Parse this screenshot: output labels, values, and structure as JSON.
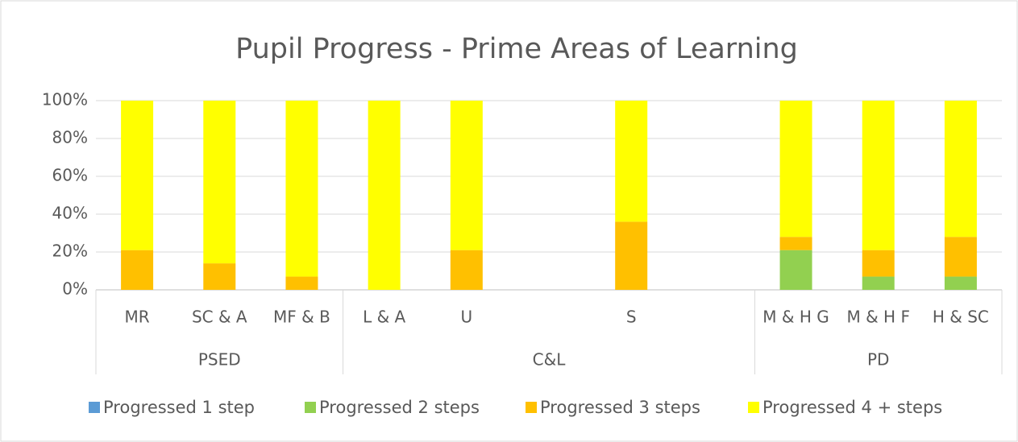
{
  "chart_data": {
    "type": "bar",
    "stacked": true,
    "title": "Pupil Progress - Prime Areas of Learning",
    "categories": [
      "MR",
      "SC & A",
      "MF & B",
      "L & A",
      "U",
      null,
      "S",
      null,
      "M & H G",
      "M & H F",
      "H & SC"
    ],
    "groups": [
      {
        "label": "PSED",
        "span": 3
      },
      {
        "label": "C&L",
        "span": 5
      },
      {
        "label": "PD",
        "span": 3
      }
    ],
    "series": [
      {
        "name": "Progressed 1 step",
        "color": "#5b9bd5",
        "values": [
          0,
          0,
          0,
          0,
          0,
          null,
          0,
          null,
          0,
          0,
          0
        ]
      },
      {
        "name": "Progressed 2 steps",
        "color": "#92d050",
        "values": [
          0,
          0,
          0,
          0,
          0,
          null,
          0,
          null,
          21,
          7,
          7
        ]
      },
      {
        "name": "Progressed 3 steps",
        "color": "#ffc000",
        "values": [
          21,
          14,
          7,
          0,
          21,
          null,
          36,
          null,
          7,
          14,
          21
        ]
      },
      {
        "name": "Progressed 4 + steps",
        "color": "#ffff00",
        "values": [
          79,
          86,
          93,
          100,
          79,
          null,
          64,
          null,
          72,
          79,
          72
        ]
      }
    ],
    "ylim": [
      0,
      100
    ],
    "yticks": [
      {
        "value": 0,
        "label": "0%"
      },
      {
        "value": 20,
        "label": "20%"
      },
      {
        "value": 40,
        "label": "40%"
      },
      {
        "value": 60,
        "label": "60%"
      },
      {
        "value": 80,
        "label": "80%"
      },
      {
        "value": 100,
        "label": "100%"
      }
    ],
    "grid": true,
    "legend": "bottom"
  }
}
